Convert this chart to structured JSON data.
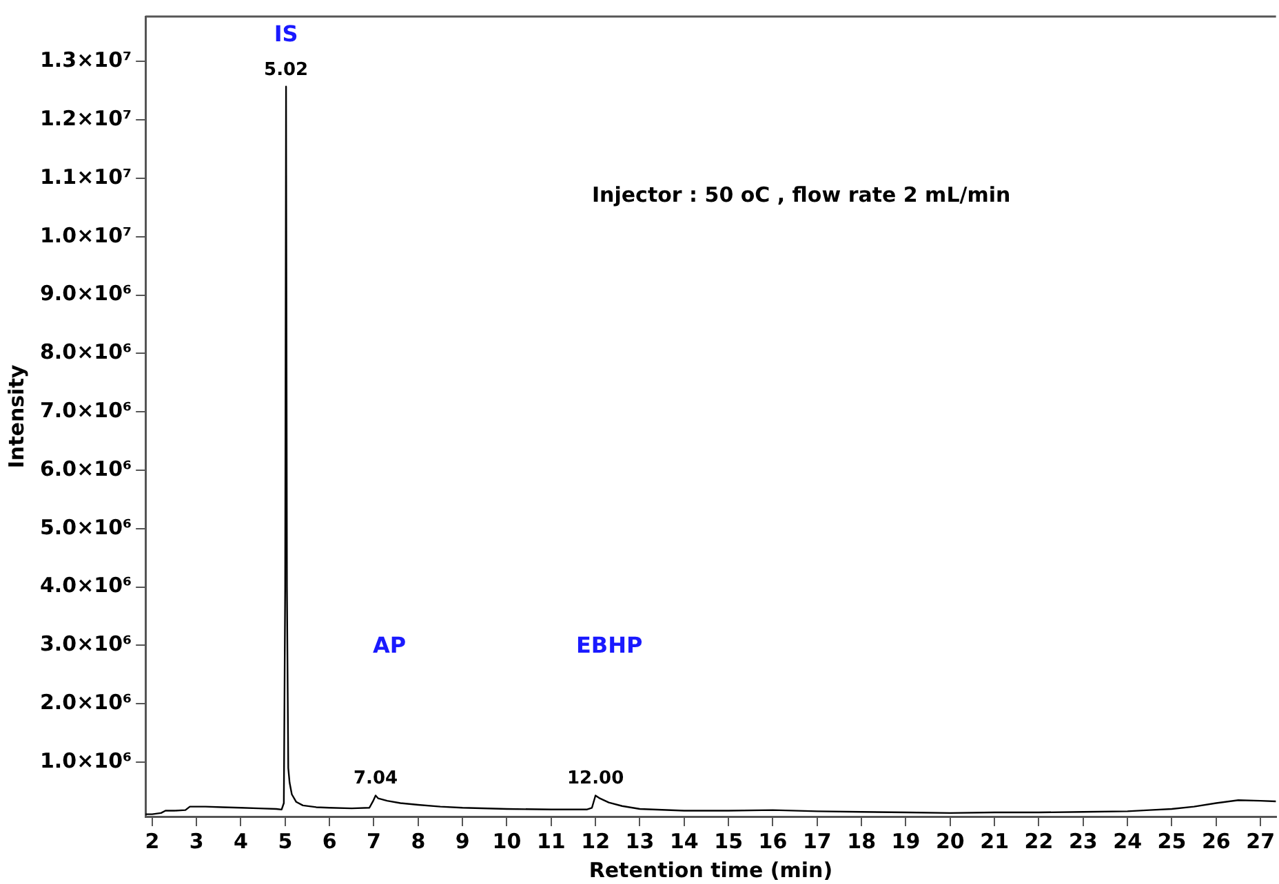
{
  "chart_data": {
    "type": "line",
    "xlabel": "Retention time (min)",
    "ylabel": "Intensity",
    "x": [
      1.85,
      2.0,
      2.2,
      2.3,
      2.5,
      2.75,
      2.85,
      3.2,
      3.6,
      4.0,
      4.4,
      4.8,
      4.92,
      4.97,
      5.0,
      5.02,
      5.04,
      5.07,
      5.1,
      5.15,
      5.25,
      5.4,
      5.7,
      6.0,
      6.5,
      6.9,
      6.98,
      7.04,
      7.1,
      7.2,
      7.3,
      7.6,
      8.0,
      8.5,
      9.0,
      10.0,
      11.0,
      11.8,
      11.92,
      12.0,
      12.1,
      12.3,
      12.6,
      13.0,
      14.0,
      15.0,
      16.0,
      17.0,
      18.0,
      19.0,
      20.0,
      21.0,
      22.0,
      23.0,
      24.0,
      24.5,
      25.0,
      25.5,
      26.0,
      26.5,
      27.0,
      27.35
    ],
    "series": [
      {
        "color": "#000000",
        "values": [
          110000,
          110000,
          130000,
          170000,
          170000,
          180000,
          240000,
          240000,
          230000,
          220000,
          210000,
          200000,
          190000,
          300000,
          4000000,
          12570000,
          4000000,
          900000,
          650000,
          450000,
          320000,
          260000,
          230000,
          220000,
          210000,
          220000,
          330000,
          430000,
          380000,
          360000,
          340000,
          300000,
          270000,
          240000,
          220000,
          200000,
          190000,
          190000,
          220000,
          430000,
          380000,
          310000,
          250000,
          200000,
          170000,
          170000,
          180000,
          160000,
          150000,
          140000,
          130000,
          140000,
          140000,
          150000,
          160000,
          180000,
          200000,
          240000,
          300000,
          350000,
          340000,
          330000
        ]
      }
    ],
    "xlim": [
      1.85,
      27.35
    ],
    "ylim": [
      70000,
      13770000
    ],
    "xticks": [
      2,
      3,
      4,
      5,
      6,
      7,
      8,
      9,
      10,
      11,
      12,
      13,
      14,
      15,
      16,
      17,
      18,
      19,
      20,
      21,
      22,
      23,
      24,
      25,
      26,
      27
    ],
    "yticks": [
      {
        "value": 1000000,
        "label": "1.0×10⁶"
      },
      {
        "value": 2000000,
        "label": "2.0×10⁶"
      },
      {
        "value": 3000000,
        "label": "3.0×10⁶"
      },
      {
        "value": 4000000,
        "label": "4.0×10⁶"
      },
      {
        "value": 5000000,
        "label": "5.0×10⁶"
      },
      {
        "value": 6000000,
        "label": "6.0×10⁶"
      },
      {
        "value": 7000000,
        "label": "7.0×10⁶"
      },
      {
        "value": 8000000,
        "label": "8.0×10⁶"
      },
      {
        "value": 9000000,
        "label": "9.0×10⁶"
      },
      {
        "value": 10000000,
        "label": "1.0×10⁷"
      },
      {
        "value": 11000000,
        "label": "1.1×10⁷"
      },
      {
        "value": 12000000,
        "label": "1.2×10⁷"
      },
      {
        "value": 13000000,
        "label": "1.3×10⁷"
      }
    ],
    "annotations": [
      {
        "text": "IS",
        "x": 5.02,
        "y": 12570000
      },
      {
        "text": "5.02",
        "x": 5.02,
        "y": 12570000
      },
      "AP",
      {
        "text": "7.04",
        "x": 7.04,
        "y": 430000
      },
      "EBHP",
      {
        "text": "12.00",
        "x": 12.0,
        "y": 430000
      },
      "Injector : 50 oC , flow rate 2 mL/min"
    ],
    "grid": false,
    "legend": false,
    "marker": "none",
    "line_style": "solid"
  }
}
